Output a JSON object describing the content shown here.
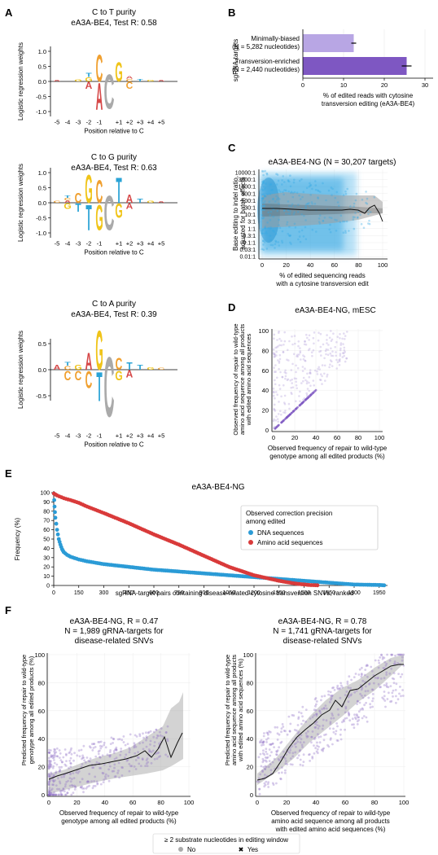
{
  "panels": {
    "A": {
      "letter": "A"
    },
    "B": {
      "letter": "B"
    },
    "C": {
      "letter": "C"
    },
    "D": {
      "letter": "D"
    },
    "E": {
      "letter": "E"
    },
    "F": {
      "letter": "F"
    }
  },
  "logos": [
    {
      "title1": "C to T purity",
      "title2": "eA3A-BE4, Test R: 0.58",
      "yticks": [
        "1.0",
        "0.5",
        "0.0",
        "-0.5",
        "-1.0"
      ],
      "ylabel": "Logistic regression weights",
      "xticks": [
        "-5",
        "-4",
        "-3",
        "-2",
        "-1",
        "+1",
        "+2",
        "+3",
        "+4",
        "+5"
      ],
      "xlabel": "Position relative to C"
    },
    {
      "title1": "C to G purity",
      "title2": "eA3A-BE4, Test R: 0.63",
      "yticks": [
        "1.0",
        "0.5",
        "0.0",
        "-0.5",
        "-1.0"
      ],
      "ylabel": "Logistic regression weights",
      "xticks": [
        "-5",
        "-4",
        "-3",
        "-2",
        "-1",
        "+1",
        "+2",
        "+3",
        "+4",
        "+5"
      ],
      "xlabel": "Position relative to C"
    },
    {
      "title1": "C to A purity",
      "title2": "eA3A-BE4, Test R: 0.39",
      "yticks": [
        "0.5",
        "0.0",
        "-0.5"
      ],
      "ylabel": "Logistic regression weights",
      "xticks": [
        "-5",
        "-4",
        "-3",
        "-2",
        "-1",
        "+1",
        "+2",
        "+3",
        "+4",
        "+5"
      ],
      "xlabel": "Position relative to C"
    }
  ],
  "panel_b": {
    "ylabel": "sgRNA-targets",
    "bar1_line1": "Minimally-biased",
    "bar1_line2": "(N = 5,282 nucleotides)",
    "bar2_line1": "Transversion-enriched",
    "bar2_line2": "(N = 2,440 nucleotides)",
    "xticks": [
      "0",
      "10",
      "20",
      "30"
    ],
    "xlabel1": "% of edited reads with cytosine",
    "xlabel2": "transversion editing (eA3A-BE4)"
  },
  "panel_c": {
    "title": "eA3A-BE4-NG (N = 30,207 targets)",
    "ylabel1": "Base editing to indel ratio,",
    "ylabel2": "adjusted for batch effects",
    "yticks": [
      "10000:1",
      "3000:1",
      "1000:1",
      "300:1",
      "100:1",
      "30:1",
      "10:1",
      "3:1",
      "1:1",
      "0.3:1",
      "0.1:1",
      "0.03:1",
      "0.01:1"
    ],
    "xticks": [
      "0",
      "20",
      "40",
      "60",
      "80",
      "100"
    ],
    "xlabel1": "% of edited sequencing reads",
    "xlabel2": "with a cytosine transversion edit"
  },
  "panel_d": {
    "title": "eA3A-BE4-NG, mESC",
    "ylabel1": "Observed frequency of repair to wild-type",
    "ylabel2": "amino acid sequence among all products",
    "ylabel3": "with edited amino acid sequences",
    "ticks": [
      "0",
      "20",
      "40",
      "60",
      "80",
      "100"
    ],
    "xlabel1": "Observed frequency of repair to wild-type",
    "xlabel2": "genotype among all edited products (%)"
  },
  "panel_e": {
    "title": "eA3A-BE4-NG",
    "ylabel": "Frequency (%)",
    "yticks": [
      "0",
      "10",
      "20",
      "30",
      "40",
      "50",
      "60",
      "70",
      "80",
      "90",
      "100"
    ],
    "xticks": [
      "0",
      "150",
      "300",
      "450",
      "600",
      "750",
      "900",
      "1050",
      "1200",
      "1350",
      "1500",
      "1650",
      "1800",
      "1950"
    ],
    "xlabel": "sgRNA-target pairs containing disease-related cytosine transversion SNVs, ranked",
    "legend_title1": "Observed correction precision",
    "legend_title2": "among edited",
    "legend_dna": "DNA sequences",
    "legend_aa": "Amino acid sequences",
    "color_dna": "#2b9bd6",
    "color_aa": "#d93a3a"
  },
  "panel_f_left": {
    "title1": "eA3A-BE4-NG, R = 0.47",
    "title2": "N = 1,989 gRNA-targets for",
    "title3": "disease-related SNVs",
    "ylabel1": "Predicted frequency of repair to wild-type",
    "ylabel2": "genotype among all edited products (%)",
    "ticks": [
      "0",
      "20",
      "40",
      "60",
      "80",
      "100"
    ],
    "xlabel1": "Observed frequency of repair to wild-type",
    "xlabel2": "genotype among all edited products (%)"
  },
  "panel_f_right": {
    "title1": "eA3A-BE4-NG, R = 0.78",
    "title2": "N = 1,741 gRNA-targets for",
    "title3": "disease-related SNVs",
    "ylabel1": "Predicted frequency of repair to wild-type",
    "ylabel2": "amino acid sequence among all products",
    "ylabel3": "with edited amino acid sequences (%)",
    "ticks": [
      "0",
      "20",
      "40",
      "60",
      "80",
      "100"
    ],
    "xlabel1": "Observed frequency of repair to wild-type",
    "xlabel2": "amino acid sequence among all products",
    "xlabel3": "with edited amino acid sequences (%)"
  },
  "legend_bottom": {
    "title": "≥ 2 substrate nucleotides in editing window",
    "no": "No",
    "yes": "Yes"
  },
  "chart_data": [
    {
      "type": "bar",
      "categories": [
        "Minimally-biased (N = 5,282 nucleotides)",
        "Transversion-enriched (N = 2,440 nucleotides)"
      ],
      "values": [
        12.5,
        25.5
      ],
      "errors": [
        0.6,
        1.2
      ],
      "xlim": [
        0,
        30
      ],
      "colors": [
        "#b8a6e4",
        "#7e57c2"
      ]
    },
    {
      "type": "line",
      "title": "eA3A-BE4-NG",
      "xlim": [
        0,
        2000
      ],
      "ylim": [
        0,
        100
      ],
      "series": [
        {
          "name": "DNA sequences",
          "x": [
            1,
            5,
            10,
            20,
            30,
            40,
            50,
            60,
            80,
            100,
            150,
            200,
            300,
            450,
            600,
            750,
            900,
            1050,
            1200,
            1350,
            1500,
            1650,
            1800,
            1950,
            1980
          ],
          "y": [
            99,
            85,
            73,
            60,
            50,
            44,
            39,
            36,
            33,
            31,
            28,
            26,
            23,
            20,
            17,
            15,
            13,
            11,
            9,
            7,
            5,
            3,
            1,
            0.5,
            0.2
          ]
        },
        {
          "name": "Amino acid sequences",
          "x": [
            1,
            20,
            60,
            100,
            150,
            200,
            300,
            450,
            600,
            750,
            900,
            1050,
            1200,
            1350,
            1450,
            1530,
            1580
          ],
          "y": [
            99,
            97,
            94,
            92,
            89,
            85,
            78,
            67,
            55,
            44,
            32,
            20,
            11,
            5,
            2,
            0.5,
            0.2
          ]
        }
      ]
    }
  ]
}
